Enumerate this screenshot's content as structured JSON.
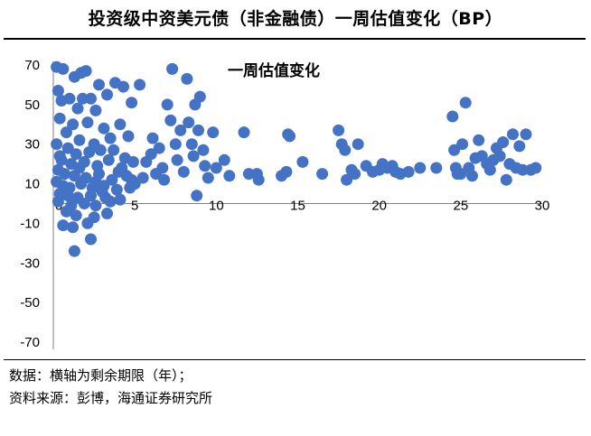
{
  "header": {
    "title": "投资级中资美元债（非金融债）一周估值变化（BP）"
  },
  "footer": {
    "note": "数据：横轴为剩余期限（年）；",
    "source": "资料来源：彭博，海通证券研究所"
  },
  "colors": {
    "marker": "#4472C4",
    "axis": "#7f7f7f"
  },
  "chart_data": {
    "type": "scatter",
    "title": "一周估值变化",
    "xlabel": "",
    "ylabel": "",
    "xlim": [
      0,
      30
    ],
    "ylim": [
      -70,
      70
    ],
    "xticks": [
      0,
      5,
      10,
      15,
      20,
      25,
      30
    ],
    "yticks": [
      70,
      50,
      30,
      10,
      -10,
      -30,
      -50,
      -70
    ],
    "grid": false,
    "series": [
      {
        "points": [
          [
            0.2,
            69
          ],
          [
            0.6,
            68
          ],
          [
            1.3,
            64
          ],
          [
            1.7,
            66
          ],
          [
            2.0,
            67
          ],
          [
            0.3,
            57
          ],
          [
            0.5,
            52
          ],
          [
            1.0,
            53
          ],
          [
            1.8,
            53
          ],
          [
            2.3,
            53
          ],
          [
            3.3,
            55
          ],
          [
            2.8,
            60
          ],
          [
            3.8,
            61
          ],
          [
            4.3,
            59
          ],
          [
            5.3,
            60
          ],
          [
            4.8,
            51
          ],
          [
            1.5,
            48
          ],
          [
            2.6,
            47
          ],
          [
            0.4,
            43
          ],
          [
            1.2,
            40
          ],
          [
            2.1,
            41
          ],
          [
            3.1,
            38
          ],
          [
            4.1,
            40
          ],
          [
            4.6,
            34
          ],
          [
            0.8,
            36
          ],
          [
            1.6,
            32
          ],
          [
            2.5,
            30
          ],
          [
            3.5,
            33
          ],
          [
            0.2,
            30
          ],
          [
            0.9,
            28
          ],
          [
            1.4,
            25
          ],
          [
            2.2,
            26
          ],
          [
            2.9,
            27
          ],
          [
            3.7,
            27
          ],
          [
            4.4,
            23
          ],
          [
            0.5,
            22
          ],
          [
            1.1,
            20
          ],
          [
            1.9,
            21
          ],
          [
            2.7,
            19
          ],
          [
            3.4,
            22
          ],
          [
            4.2,
            18
          ],
          [
            4.9,
            21
          ],
          [
            0.3,
            17
          ],
          [
            0.7,
            15
          ],
          [
            1.3,
            14
          ],
          [
            2.0,
            13
          ],
          [
            2.8,
            15
          ],
          [
            3.6,
            12
          ],
          [
            4.5,
            14
          ],
          [
            0.2,
            11
          ],
          [
            0.6,
            9
          ],
          [
            1.0,
            8
          ],
          [
            1.7,
            10
          ],
          [
            2.4,
            8
          ],
          [
            3.1,
            9
          ],
          [
            3.9,
            7
          ],
          [
            4.7,
            8
          ],
          [
            0.4,
            5
          ],
          [
            0.9,
            4
          ],
          [
            1.5,
            3
          ],
          [
            2.3,
            4
          ],
          [
            3.2,
            3
          ],
          [
            4.1,
            2
          ],
          [
            0.3,
            1
          ],
          [
            1.1,
            -1
          ],
          [
            1.9,
            0
          ],
          [
            2.6,
            -1
          ],
          [
            3.5,
            1
          ],
          [
            0.8,
            -4
          ],
          [
            1.4,
            -6
          ],
          [
            2.5,
            -7
          ],
          [
            3.3,
            -5
          ],
          [
            0.6,
            -11
          ],
          [
            1.2,
            -12
          ],
          [
            2.1,
            -10
          ],
          [
            2.3,
            -18
          ],
          [
            1.3,
            -24
          ],
          [
            0.4,
            24
          ],
          [
            1.6,
            18
          ],
          [
            2.6,
            11
          ],
          [
            3.0,
            6
          ],
          [
            4.0,
            16
          ],
          [
            4.8,
            12
          ],
          [
            5.0,
            10
          ],
          [
            5.5,
            13
          ],
          [
            5.7,
            21
          ],
          [
            6.0,
            25
          ],
          [
            6.1,
            33
          ],
          [
            6.3,
            15
          ],
          [
            6.5,
            28
          ],
          [
            6.7,
            18
          ],
          [
            6.8,
            12
          ],
          [
            7.0,
            50
          ],
          [
            7.2,
            42
          ],
          [
            7.3,
            68
          ],
          [
            7.5,
            30
          ],
          [
            7.6,
            22
          ],
          [
            7.8,
            37
          ],
          [
            8.0,
            16
          ],
          [
            8.2,
            63
          ],
          [
            8.3,
            41
          ],
          [
            8.5,
            30
          ],
          [
            8.6,
            24
          ],
          [
            8.7,
            50
          ],
          [
            8.9,
            37
          ],
          [
            8.8,
            4
          ],
          [
            9.0,
            54
          ],
          [
            9.2,
            27
          ],
          [
            9.3,
            19
          ],
          [
            9.5,
            13
          ],
          [
            9.8,
            36
          ],
          [
            10.0,
            18
          ],
          [
            10.5,
            22
          ],
          [
            10.8,
            14
          ],
          [
            12.0,
            15
          ],
          [
            11.7,
            36
          ],
          [
            12.5,
            15
          ],
          [
            12.6,
            12
          ],
          [
            14.0,
            14
          ],
          [
            14.3,
            16
          ],
          [
            14.4,
            35
          ],
          [
            14.5,
            34
          ],
          [
            15.3,
            21
          ],
          [
            16.5,
            15
          ],
          [
            17.5,
            37
          ],
          [
            17.7,
            30
          ],
          [
            17.9,
            27
          ],
          [
            18.0,
            12
          ],
          [
            18.3,
            17
          ],
          [
            18.5,
            15
          ],
          [
            18.7,
            30
          ],
          [
            19.2,
            19
          ],
          [
            19.6,
            16
          ],
          [
            20.0,
            17
          ],
          [
            20.2,
            20
          ],
          [
            20.5,
            18
          ],
          [
            20.8,
            19
          ],
          [
            21.0,
            16
          ],
          [
            21.3,
            15
          ],
          [
            21.8,
            16
          ],
          [
            22.5,
            18
          ],
          [
            23.5,
            18
          ],
          [
            24.5,
            44
          ],
          [
            24.6,
            27
          ],
          [
            24.7,
            18
          ],
          [
            24.8,
            15
          ],
          [
            25.0,
            15
          ],
          [
            25.1,
            30
          ],
          [
            25.3,
            51
          ],
          [
            25.5,
            18
          ],
          [
            25.7,
            14
          ],
          [
            25.9,
            23
          ],
          [
            26.1,
            32
          ],
          [
            26.3,
            24
          ],
          [
            26.6,
            20
          ],
          [
            26.8,
            17
          ],
          [
            27.0,
            22
          ],
          [
            27.2,
            28
          ],
          [
            27.4,
            24
          ],
          [
            27.6,
            31
          ],
          [
            27.8,
            12
          ],
          [
            28.0,
            20
          ],
          [
            28.2,
            35
          ],
          [
            28.4,
            18
          ],
          [
            28.6,
            29
          ],
          [
            28.8,
            17
          ],
          [
            29.0,
            35
          ],
          [
            29.3,
            17
          ],
          [
            29.6,
            18
          ]
        ]
      }
    ]
  }
}
